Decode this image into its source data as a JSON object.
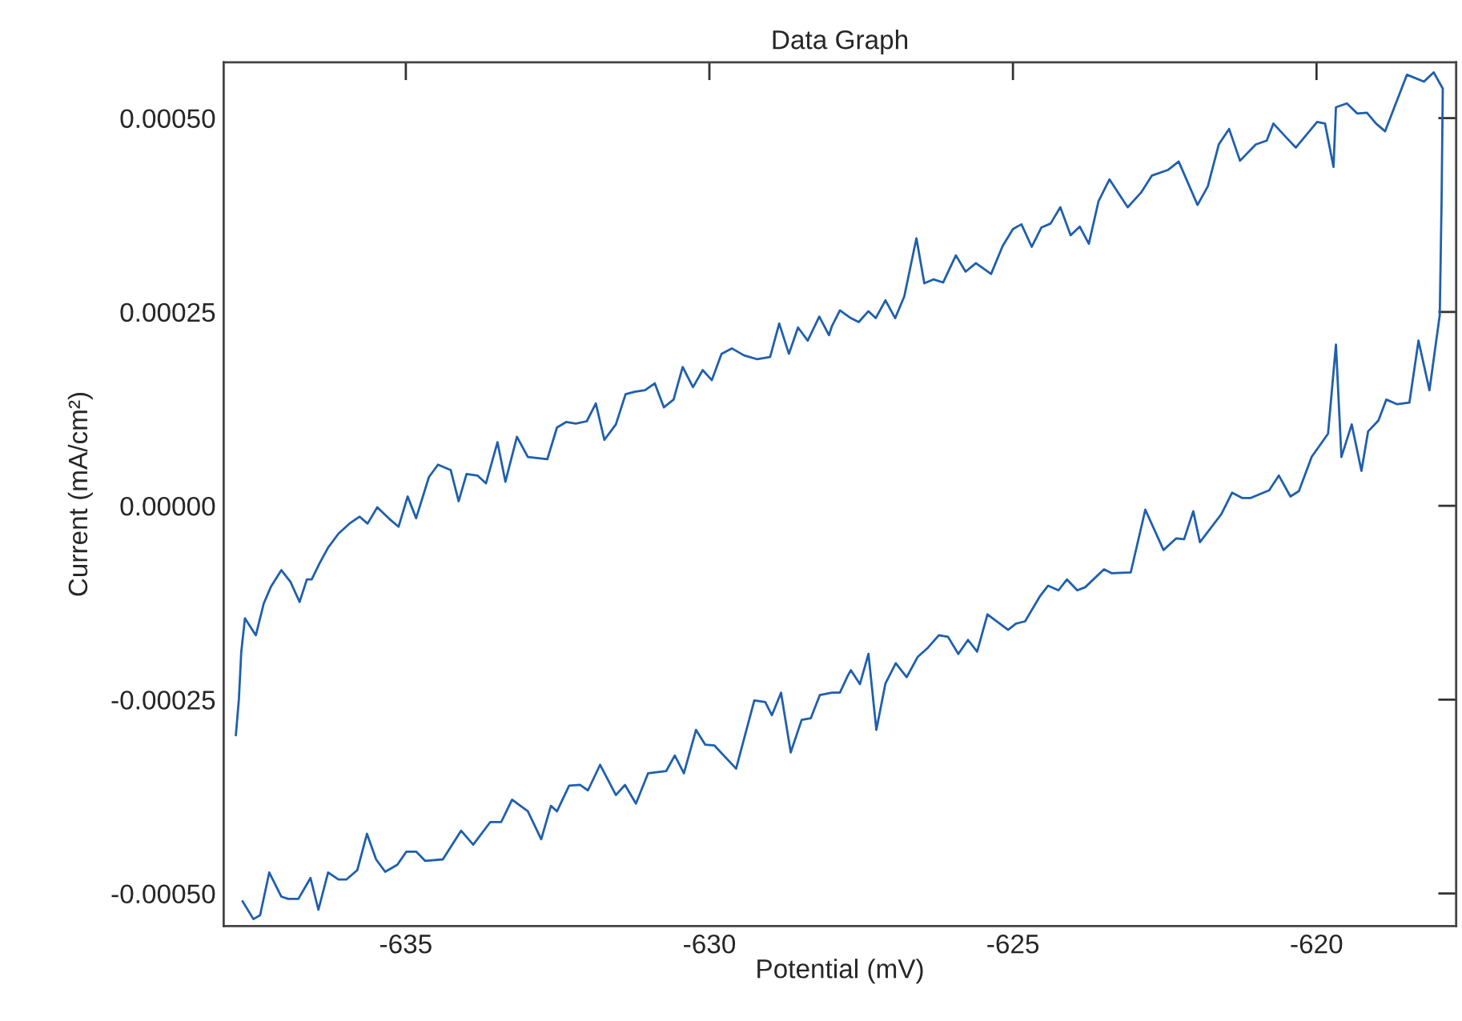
{
  "chart_data": {
    "type": "line",
    "title": "Data Graph",
    "xlabel": "Potential (mV)",
    "ylabel": "Current (mA/cm²)",
    "xlim": [
      -638,
      -617.7
    ],
    "ylim": [
      -0.000542,
      0.000572
    ],
    "xticks": [
      -635,
      -630,
      -625,
      -620
    ],
    "yticks": [
      {
        "value": -0.0005,
        "label": "-0.00050"
      },
      {
        "value": -0.00025,
        "label": "-0.00025"
      },
      {
        "value": 0,
        "label": "0.00000"
      },
      {
        "value": 0.00025,
        "label": "0.00025"
      },
      {
        "value": 0.0005,
        "label": "0.00050"
      }
    ],
    "grid": false,
    "legend": false,
    "marker": "none",
    "line_style": "solid",
    "series": [
      {
        "color": "#1f5fad",
        "x": [
          -637.69,
          -637.51,
          -637.4,
          -637.25,
          -637.05,
          -636.94,
          -636.77,
          -636.57,
          -636.44,
          -636.28,
          -636.11,
          -635.98,
          -635.8,
          -635.64,
          -635.49,
          -635.34,
          -635.14,
          -634.99,
          -634.83,
          -634.68,
          -634.39,
          -634.09,
          -633.89,
          -633.61,
          -633.43,
          -633.25,
          -632.99,
          -632.77,
          -632.61,
          -632.51,
          -632.31,
          -632.13,
          -632.0,
          -631.8,
          -631.54,
          -631.39,
          -631.21,
          -631.01,
          -630.71,
          -630.57,
          -630.42,
          -630.22,
          -630.07,
          -629.92,
          -629.56,
          -629.26,
          -629.08,
          -628.97,
          -628.82,
          -628.66,
          -628.48,
          -628.33,
          -628.18,
          -627.98,
          -627.85,
          -627.72,
          -627.67,
          -627.52,
          -627.38,
          -627.25,
          -627.1,
          -626.93,
          -626.75,
          -626.57,
          -626.4,
          -626.22,
          -626.07,
          -625.9,
          -625.74,
          -625.59,
          -625.42,
          -625.08,
          -624.95,
          -624.8,
          -624.55,
          -624.42,
          -624.25,
          -624.11,
          -623.94,
          -623.81,
          -623.5,
          -623.37,
          -623.06,
          -622.82,
          -622.52,
          -622.31,
          -622.18,
          -622.03,
          -621.92,
          -621.57,
          -621.39,
          -621.22,
          -621.09,
          -620.78,
          -620.62,
          -620.43,
          -620.29,
          -620.08,
          -619.81,
          -619.68,
          -619.59,
          -619.42,
          -619.26,
          -619.15,
          -618.98,
          -618.85,
          -618.67,
          -618.47,
          -618.32,
          -618.14,
          -617.97,
          -617.94,
          -617.92,
          -618.07,
          -618.23,
          -618.51,
          -618.87,
          -619.02,
          -619.17,
          -619.33,
          -619.5,
          -619.68,
          -619.72,
          -619.86,
          -619.99,
          -620.34,
          -620.51,
          -620.71,
          -620.82,
          -621.0,
          -621.26,
          -621.44,
          -621.61,
          -621.79,
          -621.96,
          -622.27,
          -622.45,
          -622.71,
          -622.89,
          -623.11,
          -623.41,
          -623.59,
          -623.75,
          -623.9,
          -624.05,
          -624.22,
          -624.38,
          -624.53,
          -624.69,
          -624.86,
          -625.0,
          -625.17,
          -625.36,
          -625.61,
          -625.78,
          -625.94,
          -626.15,
          -626.31,
          -626.46,
          -626.59,
          -626.79,
          -626.94,
          -627.1,
          -627.26,
          -627.38,
          -627.54,
          -627.67,
          -627.85,
          -627.98,
          -628.03,
          -628.19,
          -628.38,
          -628.54,
          -628.69,
          -628.85,
          -629.0,
          -629.21,
          -629.43,
          -629.63,
          -629.8,
          -629.96,
          -630.11,
          -630.27,
          -630.44,
          -630.59,
          -630.75,
          -630.9,
          -631.06,
          -631.23,
          -631.38,
          -631.54,
          -631.73,
          -631.87,
          -632.02,
          -632.2,
          -632.36,
          -632.51,
          -632.67,
          -632.99,
          -633.17,
          -633.36,
          -633.49,
          -633.68,
          -633.82,
          -634.0,
          -634.13,
          -634.26,
          -634.47,
          -634.62,
          -634.83,
          -634.97,
          -635.12,
          -635.27,
          -635.47,
          -635.63,
          -635.76,
          -635.93,
          -636.11,
          -636.28,
          -636.42,
          -636.55,
          -636.63,
          -636.75,
          -636.9,
          -637.05,
          -637.22,
          -637.34,
          -637.47,
          -637.65,
          -637.71,
          -637.75,
          -637.8
        ],
        "values": [
          -0.00051,
          -0.000533,
          -0.000528,
          -0.000473,
          -0.000504,
          -0.000507,
          -0.000507,
          -0.00048,
          -0.000521,
          -0.000473,
          -0.000482,
          -0.000482,
          -0.00047,
          -0.000423,
          -0.000456,
          -0.000472,
          -0.000463,
          -0.000446,
          -0.000446,
          -0.000458,
          -0.000456,
          -0.000419,
          -0.000437,
          -0.000408,
          -0.000408,
          -0.000379,
          -0.000394,
          -0.00043,
          -0.000387,
          -0.000394,
          -0.000361,
          -0.00036,
          -0.000367,
          -0.000334,
          -0.000373,
          -0.00036,
          -0.000384,
          -0.000345,
          -0.000342,
          -0.000322,
          -0.000345,
          -0.000289,
          -0.000308,
          -0.000309,
          -0.000339,
          -0.000251,
          -0.000253,
          -0.00027,
          -0.000241,
          -0.000318,
          -0.000276,
          -0.000274,
          -0.000244,
          -0.000241,
          -0.000241,
          -0.000219,
          -0.000212,
          -0.00023,
          -0.000191,
          -0.000289,
          -0.000229,
          -0.000203,
          -0.000221,
          -0.000195,
          -0.000183,
          -0.000167,
          -0.000169,
          -0.000191,
          -0.000173,
          -0.000188,
          -0.00014,
          -0.00016,
          -0.000152,
          -0.000149,
          -0.000116,
          -0.000103,
          -0.000109,
          -9.5e-05,
          -0.000109,
          -0.000105,
          -8.2e-05,
          -8.7e-05,
          -8.6e-05,
          -5e-06,
          -5.7e-05,
          -4.2e-05,
          -4.3e-05,
          -7e-06,
          -4.7e-05,
          -1.1e-05,
          1.7e-05,
          1e-05,
          1e-05,
          2e-05,
          3.9e-05,
          1.2e-05,
          1.9e-05,
          6.3e-05,
          9.3e-05,
          0.000208,
          6.3e-05,
          0.000105,
          4.5e-05,
          9.6e-05,
          0.00011,
          0.000137,
          0.000131,
          0.000133,
          0.000213,
          0.000149,
          0.000246,
          0.000393,
          0.000538,
          0.000559,
          0.000547,
          0.000556,
          0.000483,
          0.000493,
          0.000507,
          0.000506,
          0.000519,
          0.000514,
          0.000437,
          0.000493,
          0.000495,
          0.000462,
          0.000476,
          0.000493,
          0.000471,
          0.000466,
          0.000445,
          0.000486,
          0.000466,
          0.000412,
          0.000388,
          0.000444,
          0.000433,
          0.000426,
          0.000404,
          0.000385,
          0.000421,
          0.000393,
          0.000338,
          0.00036,
          0.000349,
          0.000385,
          0.000364,
          0.000359,
          0.000334,
          0.000363,
          0.000357,
          0.000335,
          0.000299,
          0.000313,
          0.000302,
          0.000323,
          0.000288,
          0.000292,
          0.000287,
          0.000345,
          0.00027,
          0.000242,
          0.000265,
          0.000242,
          0.000251,
          0.000237,
          0.000242,
          0.000252,
          0.000232,
          0.00022,
          0.000244,
          0.000213,
          0.00023,
          0.000196,
          0.000235,
          0.000192,
          0.000189,
          0.000194,
          0.000203,
          0.000196,
          0.000162,
          0.000175,
          0.000153,
          0.000179,
          0.000137,
          0.000127,
          0.000158,
          0.000149,
          0.000147,
          0.000144,
          0.000105,
          8.5e-05,
          0.000132,
          0.000109,
          0.000106,
          0.000108,
          0.000101,
          6e-05,
          6.3e-05,
          8.9e-05,
          3.1e-05,
          8.2e-05,
          2.9e-05,
          3.9e-05,
          4.1e-05,
          6e-06,
          4.6e-05,
          5.3e-05,
          3.7e-05,
          -1.6e-05,
          1.2e-05,
          -2.7e-05,
          -1.7e-05,
          -2e-06,
          -2.3e-05,
          -1.4e-05,
          -2.3e-05,
          -3.6e-05,
          -5.4e-05,
          -7.4e-05,
          -9.5e-05,
          -9.5e-05,
          -0.000124,
          -9.8e-05,
          -8.3e-05,
          -0.000104,
          -0.000126,
          -0.000167,
          -0.000145,
          -0.000188,
          -0.00025,
          -0.000296
        ]
      }
    ]
  }
}
